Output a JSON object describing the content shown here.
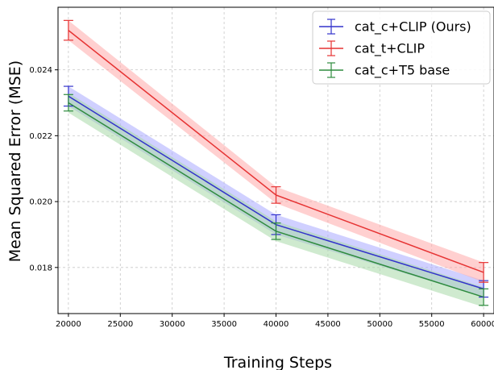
{
  "chart_data": {
    "type": "line",
    "title": "",
    "xlabel": "Training Steps",
    "ylabel": "Mean Squared Error (MSE)",
    "x": [
      20000,
      40000,
      60000
    ],
    "xticks": [
      20000,
      25000,
      30000,
      35000,
      40000,
      45000,
      50000,
      55000,
      60000
    ],
    "yticks": [
      0.018,
      0.02,
      0.022,
      0.024
    ],
    "xlim": [
      19000,
      61000
    ],
    "ylim": [
      0.0166,
      0.0259
    ],
    "grid": true,
    "legend_position": "top-right",
    "series": [
      {
        "name": "cat_c+CLIP (Ours)",
        "color": "#3333cc",
        "band_color": "#aaaaff",
        "values": [
          0.0232,
          0.0193,
          0.01735
        ],
        "error": [
          0.0003,
          0.0003,
          0.00025
        ],
        "band": [
          0.0003,
          0.0003,
          0.00025
        ]
      },
      {
        "name": "cat_t+CLIP",
        "color": "#e63333",
        "band_color": "#ffaaaa",
        "values": [
          0.0252,
          0.0202,
          0.01785
        ],
        "error": [
          0.0003,
          0.00025,
          0.0003
        ],
        "band": [
          0.0003,
          0.00025,
          0.0003
        ]
      },
      {
        "name": "cat_c+T5 base",
        "color": "#2e8b3e",
        "band_color": "#a8d8a8",
        "values": [
          0.023,
          0.0191,
          0.0171
        ],
        "error": [
          0.00025,
          0.00025,
          0.00025
        ],
        "band": [
          0.0003,
          0.0003,
          0.0003
        ]
      }
    ]
  }
}
